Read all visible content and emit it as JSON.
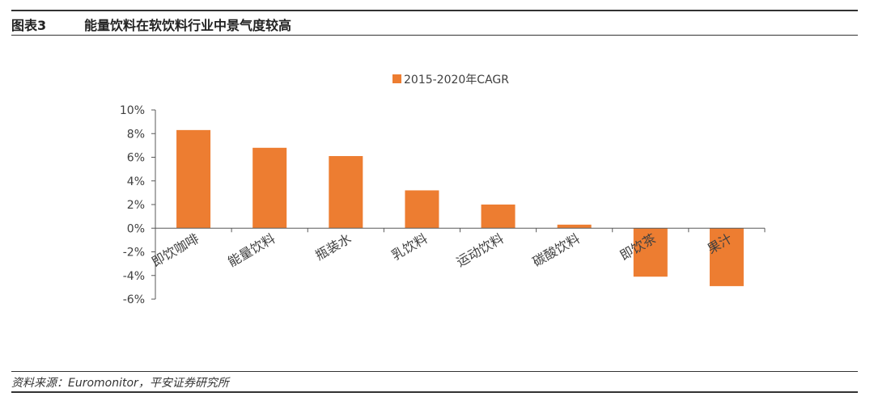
{
  "figure": {
    "number": "图表3",
    "title": "能量饮料在软饮料行业中景气度较高",
    "source": "资料来源：Euromonitor，平安证券研究所"
  },
  "colors": {
    "bar": "#ED7D31",
    "axis": "#595959",
    "rule": "#333333"
  },
  "chart_data": {
    "type": "bar",
    "categories": [
      "即饮咖啡",
      "能量饮料",
      "瓶装水",
      "乳饮料",
      "运动饮料",
      "碳酸饮料",
      "即饮茶",
      "果汁"
    ],
    "series": [
      {
        "name": "2015-2020年CAGR",
        "values": [
          8.3,
          6.8,
          6.1,
          3.2,
          2.0,
          0.3,
          -4.1,
          -4.9
        ]
      }
    ],
    "ylim": [
      -6,
      10
    ],
    "yticks": [
      "10%",
      "8%",
      "6%",
      "4%",
      "2%",
      "0%",
      "-2%",
      "-4%",
      "-6%"
    ],
    "ytick_values": [
      10,
      8,
      6,
      4,
      2,
      0,
      -2,
      -4,
      -6
    ],
    "legend_position": "top-center",
    "grid": false
  }
}
